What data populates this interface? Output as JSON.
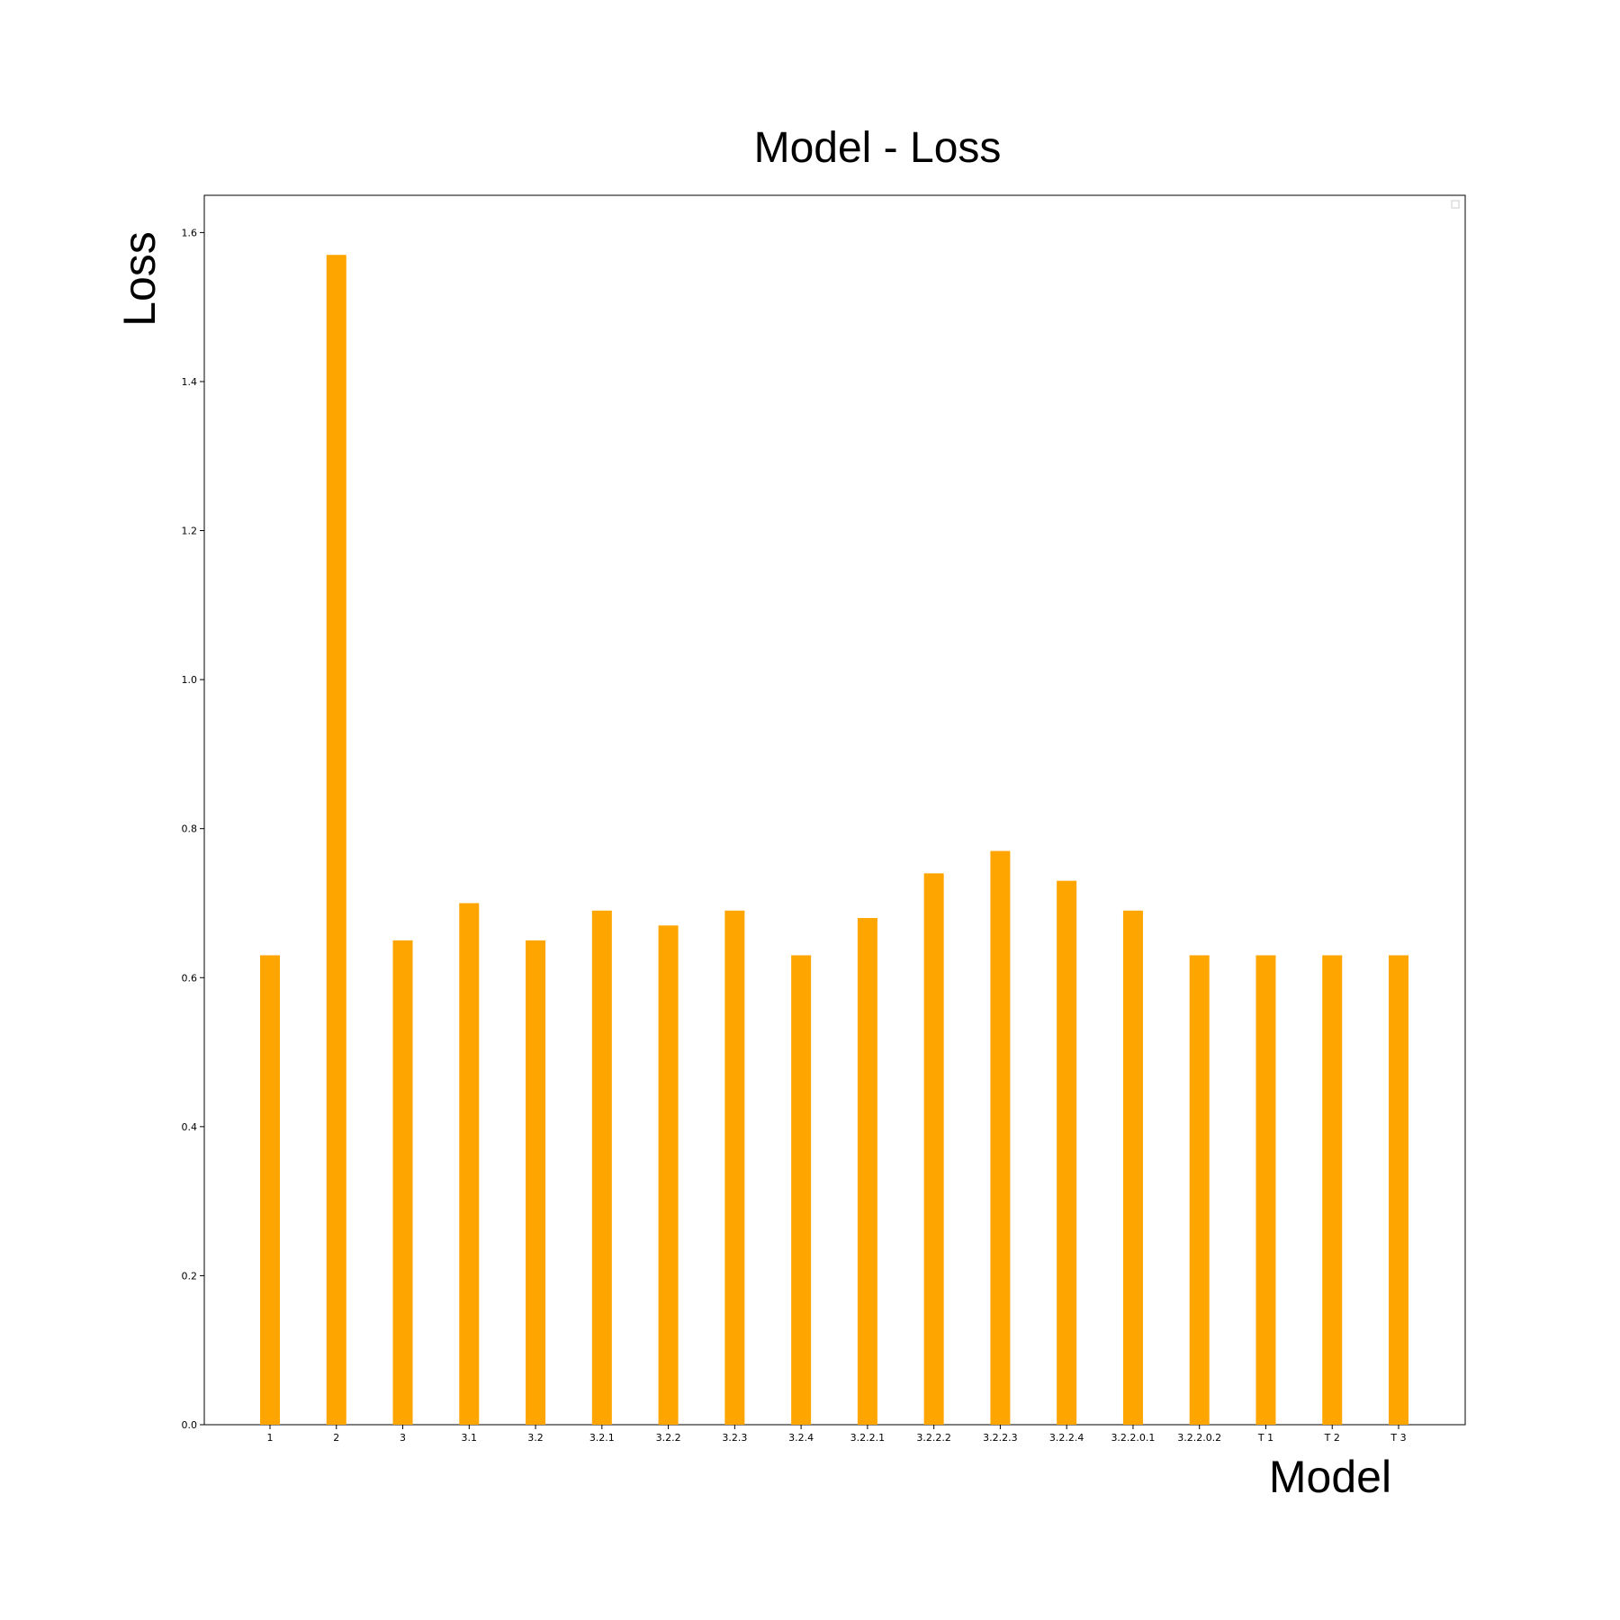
{
  "chart_data": {
    "type": "bar",
    "title": "Model - Loss",
    "xlabel": "Model",
    "ylabel": "Loss",
    "categories": [
      "1",
      "2",
      "3",
      "3.1",
      "3.2",
      "3.2.1",
      "3.2.2",
      "3.2.3",
      "3.2.4",
      "3.2.2.1",
      "3.2.2.2",
      "3.2.2.3",
      "3.2.2.4",
      "3.2.2.0.1",
      "3.2.2.0.2",
      "T 1",
      "T 2",
      "T 3"
    ],
    "values": [
      0.63,
      1.57,
      0.65,
      0.7,
      0.65,
      0.69,
      0.67,
      0.69,
      0.63,
      0.68,
      0.74,
      0.77,
      0.73,
      0.69,
      0.63,
      0.63,
      0.63,
      0.63
    ],
    "yticks": [
      "0.0",
      "0.2",
      "0.4",
      "0.6",
      "0.8",
      "1.0",
      "1.2",
      "1.4",
      "1.6"
    ],
    "ylim": [
      0,
      1.65
    ],
    "bar_color": "#ffa500",
    "grid": false,
    "legend": "top-right, empty"
  }
}
